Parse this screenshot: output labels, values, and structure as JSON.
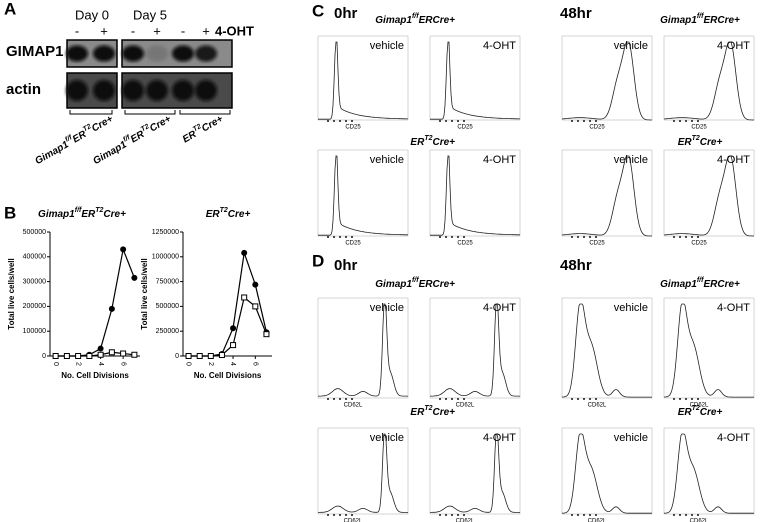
{
  "panel_labels": {
    "a": "A",
    "b": "B",
    "c": "C",
    "d": "D"
  },
  "blot": {
    "days": [
      "Day 0",
      "Day 5"
    ],
    "lanes": [
      "-",
      "+",
      "-",
      "+",
      "-",
      "+"
    ],
    "treatment": "4-OHT",
    "rows": [
      "GIMAP1",
      "actin"
    ],
    "groups": [
      [
        {
          "text": "Gimap1"
        },
        {
          "text": "f/f",
          "sup": true
        },
        {
          "text": "ER"
        },
        {
          "text": "T2",
          "sup": true
        },
        {
          "text": "Cre+"
        }
      ],
      [
        {
          "text": "Gimap1"
        },
        {
          "text": "f/f",
          "sup": true
        },
        {
          "text": "ER"
        },
        {
          "text": "T2",
          "sup": true
        },
        {
          "text": "Cre+"
        }
      ],
      [
        {
          "text": "ER"
        },
        {
          "text": "T2",
          "sup": true
        },
        {
          "text": "Cre+"
        }
      ]
    ]
  },
  "chart_data": [
    {
      "type": "line",
      "title_parts": [
        {
          "text": "Gimap1"
        },
        {
          "text": "f/f",
          "sup": true
        },
        {
          "text": "ER"
        },
        {
          "text": "T2",
          "sup": true
        },
        {
          "text": "Cre+"
        }
      ],
      "ylabel": "Total live cells/well",
      "xlabel": "No. Cell Divisions",
      "x": [
        0,
        1,
        2,
        3,
        4,
        5,
        6,
        7
      ],
      "xlim": [
        -0.5,
        7.5
      ],
      "xticks": [
        0,
        2,
        4,
        6
      ],
      "ylim": [
        0,
        500000
      ],
      "yticks": [
        0,
        100000,
        200000,
        300000,
        400000,
        500000
      ],
      "series": [
        {
          "color": "#000000",
          "marker": "circle",
          "values": [
            0,
            0,
            0,
            5000,
            30000,
            190000,
            430000,
            315000
          ]
        },
        {
          "color": "#000000",
          "marker": "open-square",
          "values": [
            0,
            0,
            0,
            0,
            5000,
            15000,
            10000,
            5000
          ]
        }
      ]
    },
    {
      "type": "line",
      "title_parts": [
        {
          "text": "ER"
        },
        {
          "text": "T2",
          "sup": true
        },
        {
          "text": "Cre+"
        }
      ],
      "ylabel": "Total live cells/well",
      "xlabel": "No. Cell Divisions",
      "x": [
        0,
        1,
        2,
        3,
        4,
        5,
        6,
        7
      ],
      "xlim": [
        -0.5,
        7.5
      ],
      "xticks": [
        0,
        2,
        4,
        6
      ],
      "ylim": [
        0,
        1250000
      ],
      "yticks": [
        0,
        250000,
        500000,
        750000,
        1000000,
        1250000
      ],
      "series": [
        {
          "color": "#000000",
          "marker": "circle",
          "values": [
            0,
            0,
            0,
            20000,
            280000,
            1040000,
            720000,
            240000
          ]
        },
        {
          "color": "#000000",
          "marker": "open-square",
          "values": [
            0,
            0,
            0,
            10000,
            110000,
            590000,
            500000,
            220000
          ]
        }
      ]
    }
  ],
  "flow": [
    {
      "times": [
        "0hr",
        "48hr"
      ],
      "treatments": [
        "vehicle",
        "4-OHT"
      ],
      "marker": "CD25",
      "genotypes": [
        [
          {
            "text": "Gimap1"
          },
          {
            "text": "f/f",
            "sup": true
          },
          {
            "text": "ER"
          },
          {
            "text": "Cre+"
          }
        ],
        [
          {
            "text": "ER"
          },
          {
            "text": "T2",
            "sup": true
          },
          {
            "text": "Cre+"
          }
        ]
      ]
    },
    {
      "times": [
        "0hr",
        "48hr"
      ],
      "treatments": [
        "vehicle",
        "4-OHT"
      ],
      "marker": "CD62L",
      "genotypes": [
        [
          {
            "text": "Gimap1"
          },
          {
            "text": "f/f",
            "sup": true
          },
          {
            "text": "ER"
          },
          {
            "text": "Cre+"
          }
        ],
        [
          {
            "text": "ER"
          },
          {
            "text": "T2",
            "sup": true
          },
          {
            "text": "Cre+"
          }
        ]
      ]
    }
  ]
}
